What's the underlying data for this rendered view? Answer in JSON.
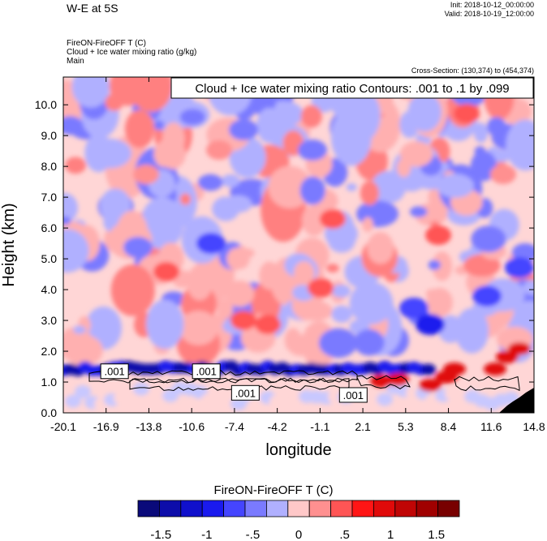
{
  "header": {
    "title": "W-E at 5S",
    "init": "Init: 2018-10-12_00:00:00",
    "valid": "Valid: 2018-10-19_12:00:00",
    "field_line1": "FireON-FireOFF T   (C)",
    "field_line2": "Cloud + Ice water mixing ratio   (g/kg)",
    "field_line3": "Main",
    "cross_section": "Cross-Section: (130,374) to (454,374)"
  },
  "chart_data": {
    "type": "heatmap",
    "xlabel": "longitude",
    "ylabel": "Height (km)",
    "x_ticks": [
      "-20.1",
      "-16.9",
      "-13.8",
      "-10.6",
      "-7.4",
      "-4.2",
      "-1.1",
      "2.1",
      "5.3",
      "8.4",
      "11.6",
      "14.8"
    ],
    "y_ticks": [
      "0.0",
      "1.0",
      "2.0",
      "3.0",
      "4.0",
      "5.0",
      "6.0",
      "7.0",
      "8.0",
      "9.0",
      "10.0"
    ],
    "xlim": [
      -20.1,
      14.8
    ],
    "ylim": [
      0.0,
      10.9
    ],
    "contour_info": "Cloud + Ice water mixing ratio Contours: .001 to .1 by .099",
    "contour_labels": [
      {
        "text": ".001",
        "x": -16.3,
        "y": 1.35
      },
      {
        "text": ".001",
        "x": -9.5,
        "y": 1.35
      },
      {
        "text": ".001",
        "x": -6.6,
        "y": 0.65
      },
      {
        "text": ".001",
        "x": 1.4,
        "y": 0.58
      }
    ],
    "colorbar": {
      "title": "FireON-FireOFF T  (C)",
      "tick_labels": [
        "-1.5",
        "-1",
        "-.5",
        "0",
        ".5",
        "1",
        "1.5"
      ],
      "tick_values": [
        -1.5,
        -1,
        -0.5,
        0,
        0.5,
        1,
        1.5
      ],
      "colors": [
        "#0a0a7a",
        "#0d0daa",
        "#1010cc",
        "#1a1aee",
        "#4545ff",
        "#7a7aff",
        "#b0b0ff",
        "#ffc8c8",
        "#ff9090",
        "#ff5555",
        "#ff1515",
        "#e00a0a",
        "#c00505",
        "#a00000",
        "#780000"
      ]
    }
  }
}
